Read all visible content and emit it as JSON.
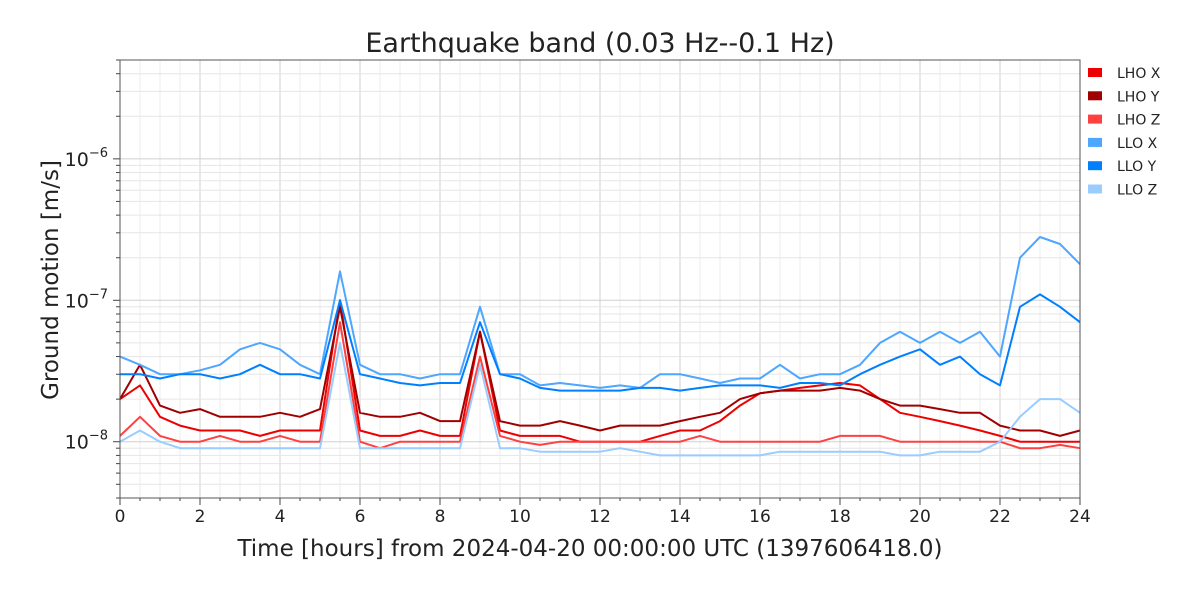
{
  "chart_data": {
    "type": "line",
    "title": "Earthquake band (0.03 Hz--0.1 Hz)",
    "xlabel": "Time [hours] from 2024-04-20 00:00:00 UTC (1397606418.0)",
    "ylabel": "Ground motion [m/s]",
    "xlim": [
      0,
      24
    ],
    "ylim": [
      4e-09,
      5e-06
    ],
    "yscale": "log",
    "grid": true,
    "legend_placement": "right",
    "x_ticks": [
      "0",
      "2",
      "4",
      "6",
      "8",
      "10",
      "12",
      "14",
      "16",
      "18",
      "20",
      "22",
      "24"
    ],
    "y_ticks": [
      {
        "base": "10",
        "exp": "−8",
        "value": 1e-08
      },
      {
        "base": "10",
        "exp": "−7",
        "value": 1e-07
      },
      {
        "base": "10",
        "exp": "−6",
        "value": 1e-06
      }
    ],
    "x_step_hours": 0.5,
    "series": [
      {
        "name": "LHO X",
        "color": "#ee0000",
        "values": [
          2e-08,
          2.5e-08,
          1.5e-08,
          1.3e-08,
          1.2e-08,
          1.2e-08,
          1.2e-08,
          1.1e-08,
          1.2e-08,
          1.2e-08,
          1.2e-08,
          1e-07,
          1.2e-08,
          1.1e-08,
          1.1e-08,
          1.2e-08,
          1.1e-08,
          1.1e-08,
          6e-08,
          1.2e-08,
          1.1e-08,
          1.1e-08,
          1.1e-08,
          1e-08,
          1e-08,
          1e-08,
          1e-08,
          1.1e-08,
          1.2e-08,
          1.2e-08,
          1.4e-08,
          1.8e-08,
          2.2e-08,
          2.3e-08,
          2.4e-08,
          2.5e-08,
          2.6e-08,
          2.5e-08,
          2e-08,
          1.6e-08,
          1.5e-08,
          1.4e-08,
          1.3e-08,
          1.2e-08,
          1.1e-08,
          1e-08,
          1e-08,
          1e-08,
          1e-08
        ]
      },
      {
        "name": "LHO Y",
        "color": "#a00000",
        "values": [
          2e-08,
          3.5e-08,
          1.8e-08,
          1.6e-08,
          1.7e-08,
          1.5e-08,
          1.5e-08,
          1.5e-08,
          1.6e-08,
          1.5e-08,
          1.7e-08,
          9e-08,
          1.6e-08,
          1.5e-08,
          1.5e-08,
          1.6e-08,
          1.4e-08,
          1.4e-08,
          6e-08,
          1.4e-08,
          1.3e-08,
          1.3e-08,
          1.4e-08,
          1.3e-08,
          1.2e-08,
          1.3e-08,
          1.3e-08,
          1.3e-08,
          1.4e-08,
          1.5e-08,
          1.6e-08,
          2e-08,
          2.2e-08,
          2.3e-08,
          2.3e-08,
          2.3e-08,
          2.4e-08,
          2.3e-08,
          2e-08,
          1.8e-08,
          1.8e-08,
          1.7e-08,
          1.6e-08,
          1.6e-08,
          1.3e-08,
          1.2e-08,
          1.2e-08,
          1.1e-08,
          1.2e-08
        ]
      },
      {
        "name": "LHO Z",
        "color": "#ff4040",
        "values": [
          1.1e-08,
          1.5e-08,
          1.1e-08,
          1e-08,
          1e-08,
          1.1e-08,
          1e-08,
          1e-08,
          1.1e-08,
          1e-08,
          1e-08,
          7e-08,
          1e-08,
          9e-09,
          1e-08,
          1e-08,
          1e-08,
          1e-08,
          4e-08,
          1.1e-08,
          1e-08,
          9.5e-09,
          1e-08,
          1e-08,
          1e-08,
          1e-08,
          1e-08,
          1e-08,
          1e-08,
          1.1e-08,
          1e-08,
          1e-08,
          1e-08,
          1e-08,
          1e-08,
          1e-08,
          1.1e-08,
          1.1e-08,
          1.1e-08,
          1e-08,
          1e-08,
          1e-08,
          1e-08,
          1e-08,
          1e-08,
          9e-09,
          9e-09,
          9.5e-09,
          9e-09
        ]
      },
      {
        "name": "LLO X",
        "color": "#4da6ff",
        "values": [
          4e-08,
          3.5e-08,
          3e-08,
          3e-08,
          3.2e-08,
          3.5e-08,
          4.5e-08,
          5e-08,
          4.5e-08,
          3.5e-08,
          3e-08,
          1.6e-07,
          3.5e-08,
          3e-08,
          3e-08,
          2.8e-08,
          3e-08,
          3e-08,
          9e-08,
          3e-08,
          3e-08,
          2.5e-08,
          2.6e-08,
          2.5e-08,
          2.4e-08,
          2.5e-08,
          2.4e-08,
          3e-08,
          3e-08,
          2.8e-08,
          2.6e-08,
          2.8e-08,
          2.8e-08,
          3.5e-08,
          2.8e-08,
          3e-08,
          3e-08,
          3.5e-08,
          5e-08,
          6e-08,
          5e-08,
          6e-08,
          5e-08,
          6e-08,
          4e-08,
          2e-07,
          2.8e-07,
          2.5e-07,
          1.8e-07
        ]
      },
      {
        "name": "LLO Y",
        "color": "#0080ff",
        "values": [
          3e-08,
          3e-08,
          2.8e-08,
          3e-08,
          3e-08,
          2.8e-08,
          3e-08,
          3.5e-08,
          3e-08,
          3e-08,
          2.8e-08,
          1e-07,
          3e-08,
          2.8e-08,
          2.6e-08,
          2.5e-08,
          2.6e-08,
          2.6e-08,
          7e-08,
          3e-08,
          2.8e-08,
          2.4e-08,
          2.3e-08,
          2.3e-08,
          2.3e-08,
          2.3e-08,
          2.4e-08,
          2.4e-08,
          2.3e-08,
          2.4e-08,
          2.5e-08,
          2.5e-08,
          2.5e-08,
          2.4e-08,
          2.6e-08,
          2.6e-08,
          2.5e-08,
          3e-08,
          3.5e-08,
          4e-08,
          4.5e-08,
          3.5e-08,
          4e-08,
          3e-08,
          2.5e-08,
          9e-08,
          1.1e-07,
          9e-08,
          7e-08
        ]
      },
      {
        "name": "LLO Z",
        "color": "#99ccff",
        "values": [
          1e-08,
          1.2e-08,
          1e-08,
          9e-09,
          9e-09,
          9e-09,
          9e-09,
          9e-09,
          9e-09,
          9e-09,
          9e-09,
          5e-08,
          9e-09,
          9e-09,
          9e-09,
          9e-09,
          9e-09,
          9e-09,
          3.5e-08,
          9e-09,
          9e-09,
          8.5e-09,
          8.5e-09,
          8.5e-09,
          8.5e-09,
          9e-09,
          8.5e-09,
          8e-09,
          8e-09,
          8e-09,
          8e-09,
          8e-09,
          8e-09,
          8.5e-09,
          8.5e-09,
          8.5e-09,
          8.5e-09,
          8.5e-09,
          8.5e-09,
          8e-09,
          8e-09,
          8.5e-09,
          8.5e-09,
          8.5e-09,
          1e-08,
          1.5e-08,
          2e-08,
          2e-08,
          1.6e-08
        ]
      }
    ]
  }
}
